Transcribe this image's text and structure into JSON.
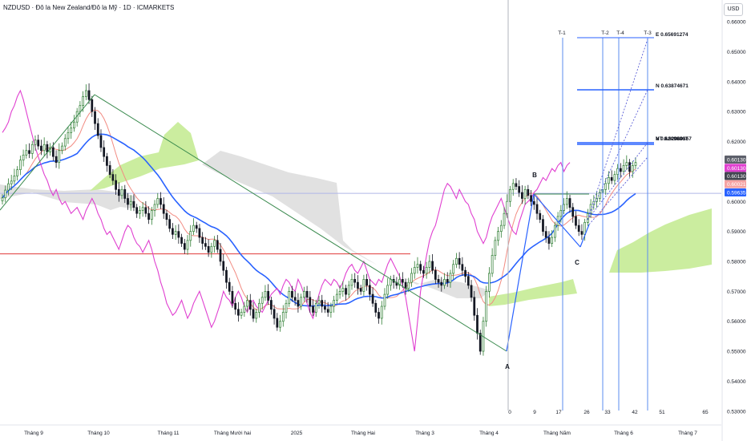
{
  "header": {
    "symbol_title": "NZDUSD · Đô la New Zealand/Đô la Mỹ · 1D · ICMARKETS",
    "currency_button": "USD"
  },
  "chart_data": {
    "type": "candlestick",
    "symbol": "NZDUSD",
    "timeframe": "1D",
    "price_axis": {
      "ticks": [
        "0.66000",
        "0.65000",
        "0.64000",
        "0.63000",
        "0.62000",
        "0.61000",
        "0.60000",
        "0.59000",
        "0.58000",
        "0.57000",
        "0.56000",
        "0.55000",
        "0.54000",
        "0.53000"
      ],
      "range": [
        0.527,
        0.6635
      ],
      "labels": [
        {
          "text": "0.60130",
          "price": 0.614,
          "color": "#5d606b"
        },
        {
          "text": "0.60130",
          "price": 0.6112,
          "color": "#e040d0"
        },
        {
          "text": "0.60130",
          "price": 0.6085,
          "color": "#434651"
        },
        {
          "text": "0.60021",
          "price": 0.6058,
          "color": "#f5a3a3"
        },
        {
          "text": "0.59635",
          "price": 0.603,
          "color": "#2962ff"
        }
      ]
    },
    "time_axis": {
      "labels": [
        "Tháng 9",
        "Tháng 10",
        "Tháng 11",
        "Tháng Mười hai",
        "2025",
        "Tháng Hai",
        "Tháng 3",
        "Tháng 4",
        "Tháng Năm",
        "Tháng 6",
        "Tháng 7"
      ],
      "bar_counts": [
        "0",
        "9",
        "17",
        "26",
        "33",
        "42",
        "51",
        "65"
      ]
    },
    "pattern_points": [
      {
        "label": "A",
        "price": 0.5484,
        "note": "below"
      },
      {
        "label": "B",
        "price": 0.608,
        "note": "above"
      },
      {
        "label": "C",
        "price": 0.584,
        "note": "below"
      }
    ],
    "targets": [
      {
        "label": "E 0.65691274",
        "price": 0.6569
      },
      {
        "label": "N 0.63874671",
        "price": 0.6387
      },
      {
        "label": "V 0.62098867",
        "price": 0.621
      },
      {
        "label": "NT 0.62060357",
        "price": 0.6206
      }
    ],
    "time_markers": [
      "T-1",
      "T-2",
      "T-4",
      "T-3"
    ],
    "horizontal_lines": [
      {
        "price": 0.5825,
        "color": "#e03a3a"
      },
      {
        "price": 0.6027,
        "color": "#b0b6e8"
      }
    ],
    "series": [
      {
        "name": "price",
        "kind": "close",
        "values": [
          0.6012,
          0.6038,
          0.6059,
          0.6068,
          0.6085,
          0.6106,
          0.6138,
          0.6155,
          0.617,
          0.616,
          0.619,
          0.6205,
          0.6185,
          0.617,
          0.619,
          0.6165,
          0.618,
          0.615,
          0.613,
          0.617,
          0.6185,
          0.621,
          0.623,
          0.6245,
          0.6265,
          0.63,
          0.632,
          0.635,
          0.637,
          0.634,
          0.63,
          0.626,
          0.622,
          0.618,
          0.615,
          0.612,
          0.609,
          0.607,
          0.604,
          0.602,
          0.604,
          0.601,
          0.599,
          0.6,
          0.598,
          0.596,
          0.597,
          0.598,
          0.596,
          0.594,
          0.597,
          0.599,
          0.601,
          0.599,
          0.596,
          0.594,
          0.591,
          0.589,
          0.59,
          0.588,
          0.586,
          0.584,
          0.587,
          0.59,
          0.592,
          0.591,
          0.588,
          0.586,
          0.585,
          0.583,
          0.585,
          0.587,
          0.584,
          0.58,
          0.577,
          0.573,
          0.57,
          0.566,
          0.564,
          0.562,
          0.563,
          0.565,
          0.567,
          0.564,
          0.561,
          0.563,
          0.566,
          0.568,
          0.57,
          0.567,
          0.564,
          0.561,
          0.558,
          0.56,
          0.563,
          0.566,
          0.57,
          0.568,
          0.567,
          0.565,
          0.568,
          0.57,
          0.568,
          0.565,
          0.563,
          0.566,
          0.567,
          0.565,
          0.564,
          0.563,
          0.565,
          0.567,
          0.569,
          0.57,
          0.571,
          0.569,
          0.572,
          0.574,
          0.573,
          0.571,
          0.57,
          0.574,
          0.572,
          0.569,
          0.566,
          0.563,
          0.561,
          0.565,
          0.569,
          0.572,
          0.574,
          0.573,
          0.572,
          0.574,
          0.573,
          0.571,
          0.573,
          0.576,
          0.578,
          0.579,
          0.577,
          0.576,
          0.578,
          0.58,
          0.577,
          0.574,
          0.573,
          0.572,
          0.574,
          0.573,
          0.576,
          0.579,
          0.581,
          0.579,
          0.577,
          0.575,
          0.572,
          0.568,
          0.562,
          0.556,
          0.55,
          0.56,
          0.57,
          0.576,
          0.582,
          0.587,
          0.59,
          0.592,
          0.596,
          0.6,
          0.604,
          0.606,
          0.605,
          0.603,
          0.601,
          0.604,
          0.602,
          0.6,
          0.599,
          0.596,
          0.594,
          0.59,
          0.588,
          0.586,
          0.588,
          0.592,
          0.595,
          0.597,
          0.599,
          0.601,
          0.598,
          0.595,
          0.592,
          0.59,
          0.589,
          0.593,
          0.596,
          0.599,
          0.6,
          0.601,
          0.603,
          0.604,
          0.606,
          0.608,
          0.607,
          0.609,
          0.611,
          0.61,
          0.612,
          0.613,
          0.61,
          0.612,
          0.613
        ]
      }
    ],
    "grid": false,
    "legend": "none"
  }
}
